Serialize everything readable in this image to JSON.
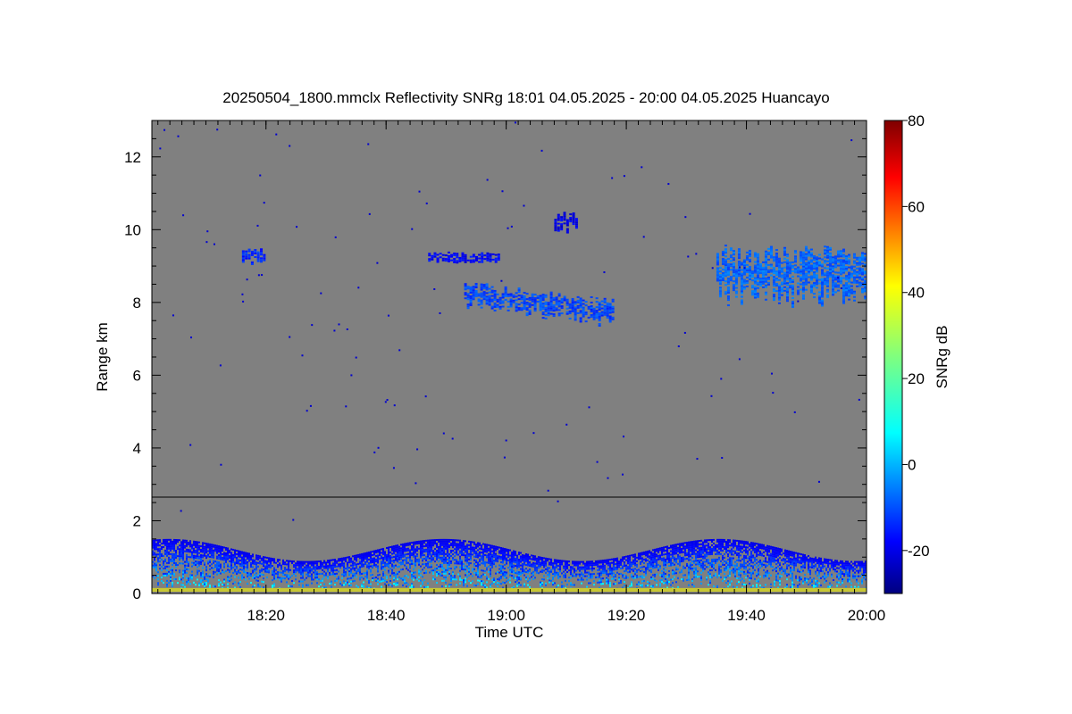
{
  "chart_data": {
    "type": "heatmap",
    "title": "20250504_1800.mmclx Reflectivity SNRg   18:01 04.05.2025 - 20:00 04.05.2025 Huancayo",
    "xlabel": "Time UTC",
    "ylabel": "Range km",
    "colorbar_label": "SNRg dB",
    "x_range_minutes_utc": [
      1081,
      1200
    ],
    "x_ticks": [
      {
        "label": "18:20",
        "value": 1100
      },
      {
        "label": "18:40",
        "value": 1120
      },
      {
        "label": "19:00",
        "value": 1140
      },
      {
        "label": "19:20",
        "value": 1160
      },
      {
        "label": "19:40",
        "value": 1180
      },
      {
        "label": "20:00",
        "value": 1200
      }
    ],
    "ylim": [
      0,
      13
    ],
    "y_ticks": [
      {
        "label": "0",
        "value": 0
      },
      {
        "label": "2",
        "value": 2
      },
      {
        "label": "4",
        "value": 4
      },
      {
        "label": "6",
        "value": 6
      },
      {
        "label": "8",
        "value": 8
      },
      {
        "label": "10",
        "value": 10
      },
      {
        "label": "12",
        "value": 12
      }
    ],
    "colorbar_range": [
      -30,
      80
    ],
    "colorbar_ticks": [
      {
        "label": "-20",
        "value": -20
      },
      {
        "label": "0",
        "value": 0
      },
      {
        "label": "20",
        "value": 20
      },
      {
        "label": "40",
        "value": 40
      },
      {
        "label": "60",
        "value": 60
      },
      {
        "label": "80",
        "value": 80
      }
    ],
    "background_color": "#808080",
    "reference_line_km": 2.65,
    "surface_band_color": "#c8c832",
    "echo_regions": [
      {
        "t0": 1081,
        "t1": 1200,
        "r0": 0.15,
        "r1": 1.5,
        "snr": -5
      },
      {
        "t0": 1096,
        "t1": 1100,
        "r0": 9.0,
        "r1": 9.5,
        "snr": -18
      },
      {
        "t0": 1133,
        "t1": 1158,
        "r0": 7.7,
        "r1": 8.6,
        "snr": -15
      },
      {
        "t0": 1127,
        "t1": 1139,
        "r0": 9.0,
        "r1": 9.4,
        "snr": -22
      },
      {
        "t0": 1148,
        "t1": 1152,
        "r0": 9.8,
        "r1": 10.5,
        "snr": -24
      },
      {
        "t0": 1175,
        "t1": 1200,
        "r0": 7.6,
        "r1": 9.6,
        "snr": -12
      }
    ]
  }
}
